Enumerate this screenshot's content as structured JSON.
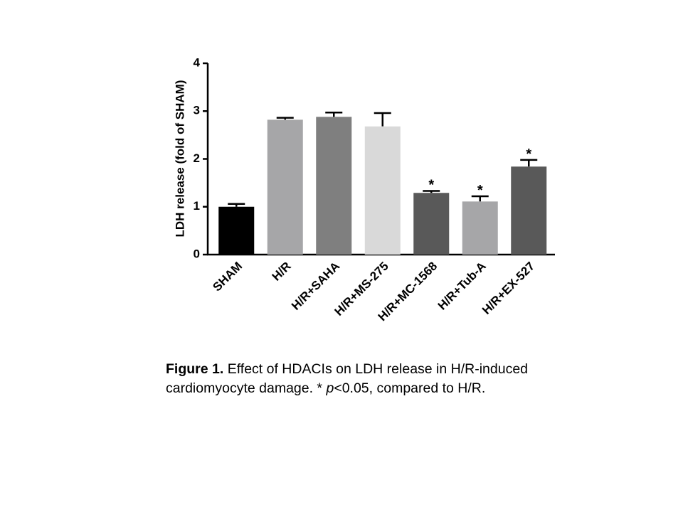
{
  "chart_data": {
    "type": "bar",
    "ylabel": "LDH release (fold of SHAM)",
    "categories": [
      "SHAM",
      "H/R",
      "H/R+SAHA",
      "H/R+MS-275",
      "H/R+MC-1568",
      "H/R+Tub-A",
      "H/R+EX-527"
    ],
    "values": [
      1.0,
      2.82,
      2.88,
      2.68,
      1.29,
      1.11,
      1.84
    ],
    "errors": [
      0.06,
      0.04,
      0.09,
      0.28,
      0.04,
      0.11,
      0.14
    ],
    "colors": [
      "#000000",
      "#a6a6a8",
      "#7f7f7f",
      "#d9d9d9",
      "#595959",
      "#a6a6a8",
      "#595959"
    ],
    "significance": [
      null,
      null,
      null,
      null,
      "*",
      "*",
      "*"
    ],
    "ylim": [
      0,
      4
    ],
    "yticks": [
      0,
      1,
      2,
      3,
      4
    ],
    "grid": false
  },
  "caption": {
    "label": "Figure 1.",
    "text": " Effect of HDACIs on LDH release in H/R-induced cardiomyocyte damage. * ",
    "italic": "p",
    "text_end": "<0.05, compared to H/R."
  }
}
